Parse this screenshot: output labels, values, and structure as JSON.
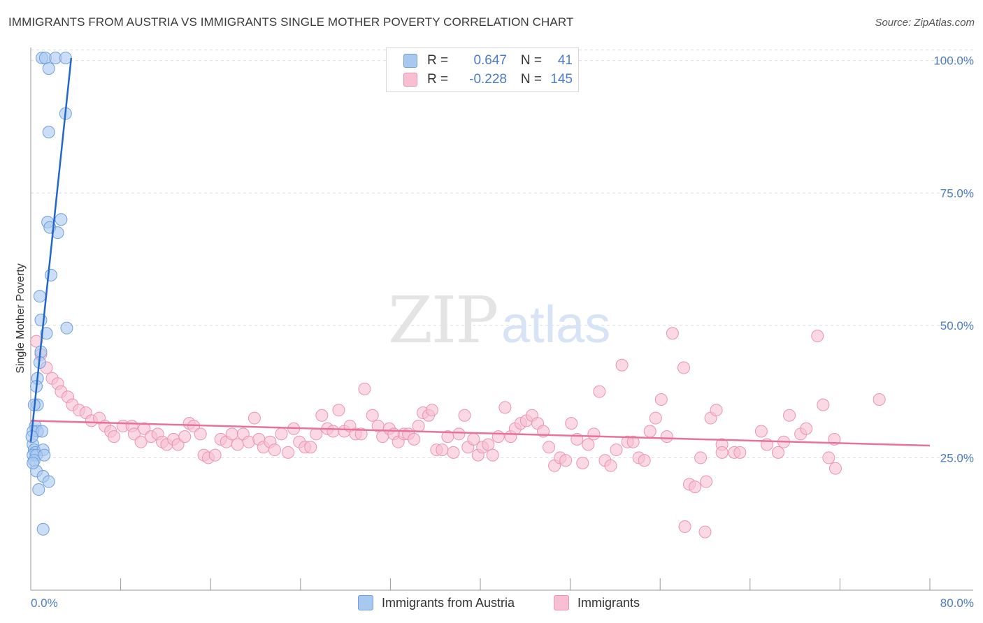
{
  "header": {
    "title": "IMMIGRANTS FROM AUSTRIA VS IMMIGRANTS SINGLE MOTHER POVERTY CORRELATION CHART",
    "source": "Source: ZipAtlas.com"
  },
  "legend": {
    "rows": [
      {
        "r_label": "R =",
        "r_value": "0.647",
        "n_label": "N =",
        "n_value": "41"
      },
      {
        "r_label": "R =",
        "r_value": "-0.228",
        "n_label": "N =",
        "n_value": "145"
      }
    ]
  },
  "bottom_legend": [
    "Immigrants from Austria",
    "Immigrants"
  ],
  "colors": {
    "austria_fill": "#a9c8f0",
    "austria_stroke": "#6f9fdc",
    "austria_line": "#2368c9",
    "immigrants_fill": "#f7c0d2",
    "immigrants_stroke": "#ec93b2",
    "immigrants_line": "#e8729b",
    "tick_text": "#4a7cc9",
    "grid": "#dcdcdc"
  },
  "chart_data": {
    "type": "scatter",
    "title": "IMMIGRANTS FROM AUSTRIA VS IMMIGRANTS SINGLE MOTHER POVERTY CORRELATION CHART",
    "xlabel": "",
    "ylabel": "Single Mother Poverty",
    "xlim": [
      0,
      80
    ],
    "ylim": [
      0,
      103
    ],
    "x_tick_labels": [
      "0.0%",
      "80.0%"
    ],
    "y_ticks": [
      25,
      50,
      75,
      100
    ],
    "y_tick_labels": [
      "25.0%",
      "50.0%",
      "75.0%",
      "100.0%"
    ],
    "grid": true,
    "legend_position": "top-center",
    "series": [
      {
        "name": "Immigrants from Austria",
        "trend": {
          "x": [
            0.0,
            3.6
          ],
          "y": [
            28.0,
            100.5
          ]
        },
        "points": [
          [
            1.0,
            100.5
          ],
          [
            1.3,
            100.5
          ],
          [
            1.6,
            98.5
          ],
          [
            2.2,
            100.5
          ],
          [
            3.1,
            100.5
          ],
          [
            3.1,
            90
          ],
          [
            1.6,
            86.5
          ],
          [
            2.7,
            70
          ],
          [
            1.5,
            69.5
          ],
          [
            1.7,
            68.5
          ],
          [
            2.4,
            67.5
          ],
          [
            1.8,
            59.5
          ],
          [
            0.8,
            55.5
          ],
          [
            0.9,
            51
          ],
          [
            1.4,
            48.5
          ],
          [
            3.2,
            49.5
          ],
          [
            0.9,
            45
          ],
          [
            0.8,
            43
          ],
          [
            0.6,
            40
          ],
          [
            0.5,
            38.5
          ],
          [
            0.6,
            35
          ],
          [
            0.3,
            35
          ],
          [
            0.4,
            31
          ],
          [
            0.6,
            30
          ],
          [
            0.2,
            30
          ],
          [
            1.0,
            30
          ],
          [
            0.2,
            27.5
          ],
          [
            0.3,
            26.5
          ],
          [
            0.4,
            26
          ],
          [
            1.1,
            26.5
          ],
          [
            0.2,
            25.5
          ],
          [
            0.5,
            25.5
          ],
          [
            1.2,
            25.5
          ],
          [
            0.3,
            24.5
          ],
          [
            0.5,
            22.5
          ],
          [
            1.1,
            21.5
          ],
          [
            1.6,
            20.5
          ],
          [
            0.7,
            19
          ],
          [
            1.1,
            11.5
          ],
          [
            0.1,
            29
          ],
          [
            0.2,
            24
          ]
        ]
      },
      {
        "name": "Immigrants",
        "trend": {
          "x": [
            0.0,
            80.0
          ],
          "y": [
            32.0,
            27.3
          ]
        },
        "points": [
          [
            0.5,
            47
          ],
          [
            0.9,
            44.5
          ],
          [
            1.4,
            42
          ],
          [
            1.9,
            40
          ],
          [
            2.4,
            39
          ],
          [
            2.7,
            37.5
          ],
          [
            3.3,
            36.5
          ],
          [
            3.7,
            35
          ],
          [
            4.3,
            34
          ],
          [
            4.9,
            33.5
          ],
          [
            5.4,
            32
          ],
          [
            6.1,
            32.5
          ],
          [
            6.6,
            31
          ],
          [
            7.1,
            30
          ],
          [
            7.4,
            29
          ],
          [
            8.2,
            31
          ],
          [
            9.0,
            31
          ],
          [
            9.2,
            29.5
          ],
          [
            9.8,
            28
          ],
          [
            10.1,
            30.5
          ],
          [
            10.7,
            29
          ],
          [
            11.3,
            29.5
          ],
          [
            11.7,
            28
          ],
          [
            12.1,
            27.5
          ],
          [
            12.7,
            28.5
          ],
          [
            13.1,
            27.5
          ],
          [
            13.7,
            29
          ],
          [
            14.1,
            31.5
          ],
          [
            14.5,
            31
          ],
          [
            15.1,
            29.5
          ],
          [
            15.4,
            25.5
          ],
          [
            15.8,
            25
          ],
          [
            16.4,
            25.5
          ],
          [
            16.9,
            28.5
          ],
          [
            17.4,
            28
          ],
          [
            17.9,
            29.5
          ],
          [
            18.4,
            27.5
          ],
          [
            18.9,
            29.5
          ],
          [
            19.4,
            28
          ],
          [
            19.9,
            32.5
          ],
          [
            20.3,
            28.5
          ],
          [
            20.7,
            27
          ],
          [
            21.3,
            28
          ],
          [
            21.7,
            26.5
          ],
          [
            22.3,
            29.5
          ],
          [
            22.9,
            26
          ],
          [
            23.4,
            30.5
          ],
          [
            23.9,
            28
          ],
          [
            24.4,
            27
          ],
          [
            24.9,
            27
          ],
          [
            25.4,
            29.5
          ],
          [
            25.9,
            33
          ],
          [
            26.4,
            30.5
          ],
          [
            26.9,
            30
          ],
          [
            27.4,
            34
          ],
          [
            27.9,
            30
          ],
          [
            28.4,
            31
          ],
          [
            28.9,
            29.5
          ],
          [
            29.4,
            29.5
          ],
          [
            29.7,
            38
          ],
          [
            30.4,
            33
          ],
          [
            30.9,
            31
          ],
          [
            31.3,
            29
          ],
          [
            31.9,
            30.5
          ],
          [
            32.3,
            29.5
          ],
          [
            32.7,
            28
          ],
          [
            33.2,
            29.5
          ],
          [
            33.6,
            29.5
          ],
          [
            34.1,
            28.5
          ],
          [
            34.5,
            31
          ],
          [
            34.9,
            33.5
          ],
          [
            35.4,
            33
          ],
          [
            35.7,
            34
          ],
          [
            36.1,
            26.5
          ],
          [
            36.6,
            26.5
          ],
          [
            37.1,
            29
          ],
          [
            37.6,
            26
          ],
          [
            38.1,
            29.5
          ],
          [
            38.6,
            33
          ],
          [
            38.9,
            27
          ],
          [
            39.4,
            28.5
          ],
          [
            39.8,
            25.5
          ],
          [
            40.2,
            27
          ],
          [
            40.7,
            27.5
          ],
          [
            41.1,
            25.5
          ],
          [
            41.6,
            29
          ],
          [
            42.2,
            34.5
          ],
          [
            42.7,
            29
          ],
          [
            43.1,
            30.5
          ],
          [
            43.6,
            31.5
          ],
          [
            44.1,
            32
          ],
          [
            44.6,
            33
          ],
          [
            45.1,
            31.5
          ],
          [
            45.6,
            30
          ],
          [
            46.1,
            27
          ],
          [
            46.6,
            23.5
          ],
          [
            47.1,
            25
          ],
          [
            47.6,
            24.5
          ],
          [
            48.1,
            31.5
          ],
          [
            48.6,
            28.5
          ],
          [
            49.1,
            24
          ],
          [
            49.6,
            27.5
          ],
          [
            50.1,
            29.5
          ],
          [
            50.6,
            37.5
          ],
          [
            51.1,
            24.5
          ],
          [
            51.6,
            23.5
          ],
          [
            52.1,
            26.5
          ],
          [
            52.6,
            42.5
          ],
          [
            53.1,
            28
          ],
          [
            53.6,
            28
          ],
          [
            54.1,
            25
          ],
          [
            54.6,
            24.5
          ],
          [
            55.1,
            30
          ],
          [
            55.6,
            32.5
          ],
          [
            56.1,
            36
          ],
          [
            56.6,
            29
          ],
          [
            57.1,
            48.5
          ],
          [
            58.1,
            42
          ],
          [
            58.6,
            20
          ],
          [
            59.1,
            19.5
          ],
          [
            59.6,
            25
          ],
          [
            60.1,
            20.5
          ],
          [
            60.5,
            32.5
          ],
          [
            61.0,
            34
          ],
          [
            61.5,
            27.5
          ],
          [
            61.5,
            26
          ],
          [
            62.6,
            26
          ],
          [
            63.1,
            26
          ],
          [
            65.0,
            30
          ],
          [
            65.5,
            27.5
          ],
          [
            66.5,
            26
          ],
          [
            67.0,
            28
          ],
          [
            67.5,
            33
          ],
          [
            68.5,
            29.5
          ],
          [
            69.0,
            30.5
          ],
          [
            70.0,
            48
          ],
          [
            70.5,
            35
          ],
          [
            71.0,
            25
          ],
          [
            71.5,
            28.5
          ],
          [
            71.6,
            23
          ],
          [
            75.5,
            36
          ],
          [
            58.2,
            12
          ],
          [
            60.0,
            11
          ]
        ]
      }
    ]
  }
}
